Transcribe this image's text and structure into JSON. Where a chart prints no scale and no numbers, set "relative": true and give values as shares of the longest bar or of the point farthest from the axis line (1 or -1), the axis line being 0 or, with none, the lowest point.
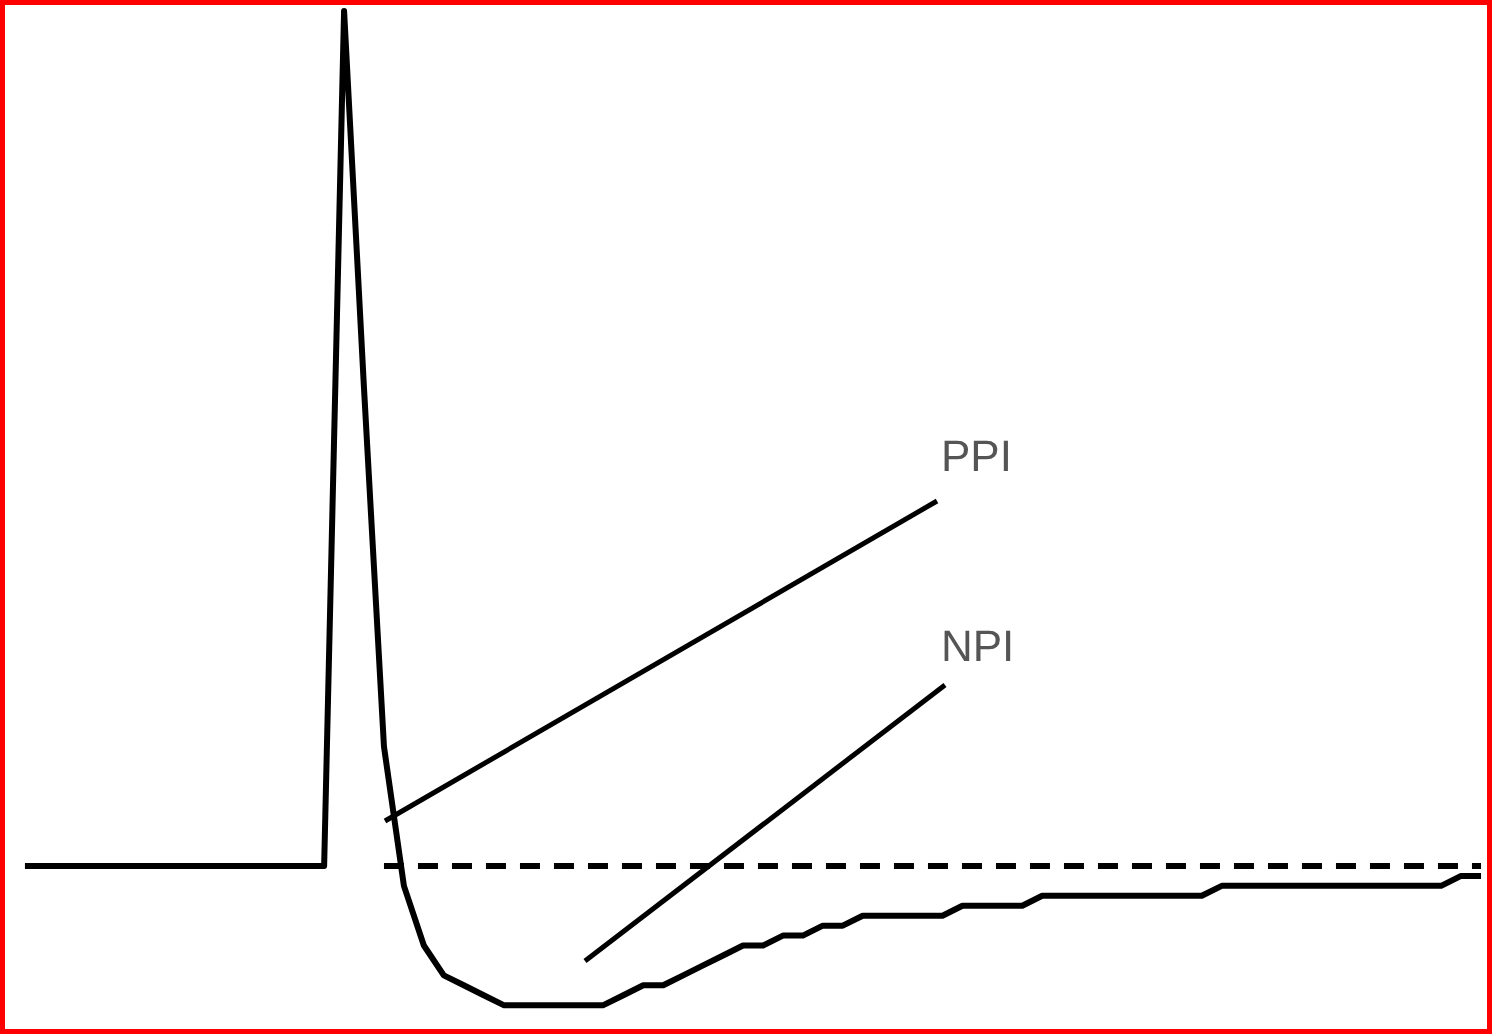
{
  "chart_data": {
    "type": "line",
    "relative": true,
    "categories": [
      null,
      null,
      null,
      null,
      null,
      null,
      null,
      null,
      null,
      null,
      null,
      null,
      null,
      null,
      null,
      null,
      null,
      null,
      null,
      null,
      null,
      null,
      null,
      null,
      null,
      null,
      null,
      null,
      null,
      null,
      null,
      null,
      null,
      null,
      null,
      null,
      null,
      null,
      null,
      null,
      null,
      null,
      null,
      null,
      null,
      null,
      null,
      null,
      null,
      null,
      null,
      null,
      null,
      null,
      null,
      null,
      null,
      null,
      null,
      null,
      null,
      null,
      null,
      null,
      null,
      null,
      null,
      null,
      null,
      null,
      null,
      null,
      null,
      null
    ],
    "series": [
      {
        "color": "#000000",
        "line_style": "solid",
        "values": [
          0.14,
          0.14,
          0.14,
          0.14,
          0.14,
          0.14,
          0.14,
          0.14,
          0.14,
          0.14,
          0.14,
          0.14,
          0.14,
          0.14,
          0.14,
          0.14,
          1.0,
          0.62,
          0.26,
          0.12,
          0.06,
          0.03,
          0.02,
          0.01,
          0.0,
          0.0,
          0.0,
          0.0,
          0.0,
          0.0,
          0.01,
          0.02,
          0.02,
          0.03,
          0.04,
          0.05,
          0.06,
          0.06,
          0.07,
          0.07,
          0.08,
          0.08,
          0.09,
          0.09,
          0.09,
          0.09,
          0.09,
          0.1,
          0.1,
          0.1,
          0.1,
          0.11,
          0.11,
          0.11,
          0.11,
          0.11,
          0.11,
          0.11,
          0.11,
          0.11,
          0.12,
          0.12,
          0.12,
          0.12,
          0.12,
          0.12,
          0.12,
          0.12,
          0.12,
          0.12,
          0.12,
          0.12,
          0.13,
          0.13
        ]
      },
      {
        "color": "#000000",
        "line_style": "dashed",
        "values": [
          null,
          null,
          null,
          null,
          null,
          null,
          null,
          null,
          null,
          null,
          null,
          null,
          null,
          null,
          null,
          null,
          null,
          null,
          0.14,
          0.14,
          0.14,
          0.14,
          0.14,
          0.14,
          0.14,
          0.14,
          0.14,
          0.14,
          0.14,
          0.14,
          0.14,
          0.14,
          0.14,
          0.14,
          0.14,
          0.14,
          0.14,
          0.14,
          0.14,
          0.14,
          0.14,
          0.14,
          0.14,
          0.14,
          0.14,
          0.14,
          0.14,
          0.14,
          0.14,
          0.14,
          0.14,
          0.14,
          0.14,
          0.14,
          0.14,
          0.14,
          0.14,
          0.14,
          0.14,
          0.14,
          0.14,
          0.14,
          0.14,
          0.14,
          0.14,
          0.14,
          0.14,
          0.14,
          0.14,
          0.14,
          0.14,
          0.14,
          0.14,
          0.14
        ]
      }
    ],
    "tick_labels": false,
    "grid": false,
    "marker": "none",
    "annotations": [
      "PPI",
      "NPI"
    ]
  }
}
